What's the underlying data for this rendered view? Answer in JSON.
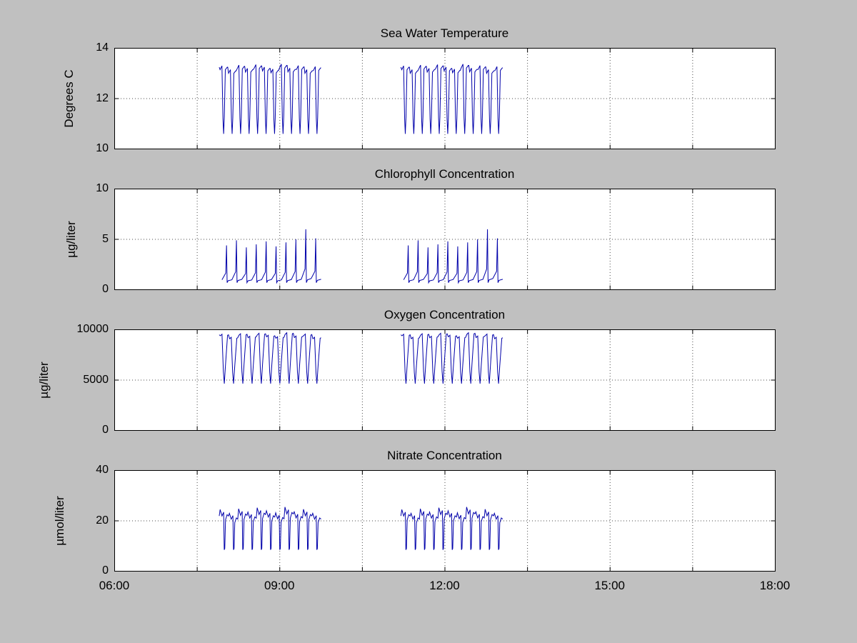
{
  "figure": {
    "background_color": "#c0c0c0",
    "plot_background": "#ffffff",
    "axis_color": "#000000",
    "grid_color": "#000000",
    "line_color": "#0000aa"
  },
  "x_axis": {
    "lim_hours": [
      6,
      18
    ],
    "tick_hours": [
      6,
      9,
      12,
      15,
      18
    ],
    "tick_labels": [
      "06:00",
      "09:00",
      "12:00",
      "15:00",
      "18:00"
    ],
    "grid_hours": [
      7.5,
      9,
      10.5,
      12,
      13.5,
      15,
      16.5
    ]
  },
  "chart_data": [
    {
      "type": "line",
      "title": "Sea Water Temperature",
      "ylabel": "Degrees C",
      "xlabel": "",
      "ylim": [
        10,
        14
      ],
      "yticks": [
        10,
        12,
        14
      ],
      "ytick_labels": [
        "10",
        "12",
        "14"
      ],
      "grid_y": [
        12
      ],
      "grid": true,
      "legend_position": "none",
      "series": {
        "name": "sea-water-temperature",
        "color": "#0000aa",
        "approx_value_range": [
          10.5,
          13.3
        ],
        "clusters": [
          {
            "start_hour": 7.9,
            "end_hour": 9.75
          },
          {
            "start_hour": 11.2,
            "end_hour": 13.05
          }
        ],
        "cycles_per_cluster": 12,
        "cycle_phases": [
          0,
          0.1,
          0.32,
          0.44,
          0.52,
          0.6,
          0.72,
          0.95,
          1
        ],
        "cycle_values": [
          13.2,
          13.1,
          13.25,
          11.2,
          10.6,
          11.25,
          13.1,
          13.2,
          13.2
        ],
        "cycle_offsets": [
          0.05,
          -0.1,
          0.08,
          -0.05,
          0.1,
          0,
          -0.08,
          0.12,
          -0.04,
          0.06,
          -0.1,
          0.02
        ]
      }
    },
    {
      "type": "line",
      "title": "Chlorophyll Concentration",
      "ylabel": "µg/liter",
      "xlabel": "",
      "ylim": [
        0,
        10
      ],
      "yticks": [
        0,
        5,
        10
      ],
      "ytick_labels": [
        "0",
        "5",
        "10"
      ],
      "grid_y": [
        5
      ],
      "grid": true,
      "legend_position": "none",
      "series": {
        "name": "chlorophyll-concentration",
        "color": "#0000aa",
        "approx_value_range": [
          0.5,
          6.0
        ],
        "clusters": [
          {
            "start_hour": 7.95,
            "end_hour": 9.75
          },
          {
            "start_hour": 11.25,
            "end_hour": 13.05
          }
        ],
        "cycles_per_cluster": 10,
        "cycle_phases": [
          0,
          0.38,
          0.46,
          0.52,
          0.62,
          1
        ],
        "cycle_values": [
          1.0,
          1.7,
          4.6,
          0.7,
          0.9,
          1.0
        ],
        "cycle_offsets": [
          -0.2,
          0.3,
          -0.4,
          -0.1,
          0.2,
          -0.3,
          0.1,
          0.4,
          1.4,
          0.5
        ]
      }
    },
    {
      "type": "line",
      "title": "Oxygen Concentration",
      "ylabel": "µg/liter",
      "xlabel": "",
      "ylim": [
        0,
        10000
      ],
      "yticks": [
        0,
        5000,
        10000
      ],
      "ytick_labels": [
        "0",
        "5000",
        "10000"
      ],
      "grid_y": [
        5000
      ],
      "grid": true,
      "legend_position": "none",
      "series": {
        "name": "oxygen-concentration",
        "color": "#0000aa",
        "approx_value_range": [
          4500,
          9600
        ],
        "clusters": [
          {
            "start_hour": 7.9,
            "end_hour": 9.75
          },
          {
            "start_hour": 11.2,
            "end_hour": 13.05
          }
        ],
        "cycles_per_cluster": 11,
        "cycle_phases": [
          0,
          0.12,
          0.3,
          0.45,
          0.55,
          0.68,
          0.9,
          1
        ],
        "cycle_values": [
          9400,
          9300,
          9450,
          5800,
          4650,
          6500,
          9350,
          9400
        ],
        "cycle_offsets": [
          100,
          -200,
          150,
          -100,
          200,
          0,
          -150,
          250,
          -80,
          120,
          -200
        ]
      }
    },
    {
      "type": "line",
      "title": "Nitrate Concentration",
      "ylabel": "µmol/liter",
      "xlabel": "",
      "ylim": [
        0,
        40
      ],
      "yticks": [
        0,
        20,
        40
      ],
      "ytick_labels": [
        "0",
        "20",
        "40"
      ],
      "grid_y": [
        20
      ],
      "grid": true,
      "legend_position": "none",
      "series": {
        "name": "nitrate-concentration",
        "color": "#0000aa",
        "approx_value_range": [
          7,
          26
        ],
        "clusters": [
          {
            "start_hour": 7.9,
            "end_hour": 9.75
          },
          {
            "start_hour": 11.2,
            "end_hour": 13.05
          }
        ],
        "cycles_per_cluster": 11,
        "cycle_phases": [
          0,
          0.1,
          0.3,
          0.48,
          0.54,
          0.6,
          0.68,
          0.85,
          1
        ],
        "cycle_values": [
          21.5,
          24,
          21.5,
          23,
          8.5,
          9,
          20,
          22,
          21.5
        ],
        "cycle_offsets": [
          0.5,
          -1,
          0.8,
          -0.5,
          1.2,
          0,
          -0.8,
          1.5,
          -0.4,
          0.6,
          -1
        ]
      }
    }
  ]
}
